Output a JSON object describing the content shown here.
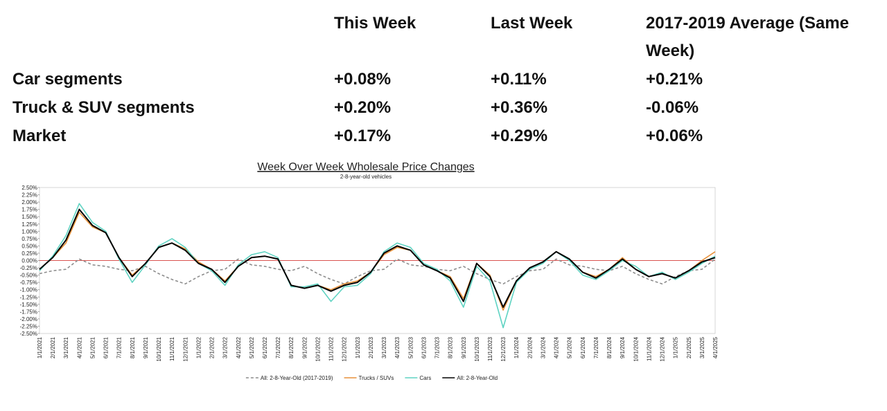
{
  "table": {
    "columns": [
      "This Week",
      "Last Week",
      "2017-2019 Average (Same Week)"
    ],
    "rows": [
      {
        "label": "Car segments",
        "values": [
          "+0.08%",
          "+0.11%",
          "+0.21%"
        ]
      },
      {
        "label": "Truck & SUV segments",
        "values": [
          "+0.20%",
          "+0.36%",
          "-0.06%"
        ]
      },
      {
        "label": "Market",
        "values": [
          "+0.17%",
          "+0.29%",
          "+0.06%"
        ]
      }
    ]
  },
  "chart_data": {
    "type": "line",
    "title": "Week Over Week Wholesale Price Changes",
    "subtitle": "2-8-year-old vehicles",
    "categories": [
      "1/1/2021",
      "2/1/2021",
      "3/1/2021",
      "4/1/2021",
      "5/1/2021",
      "6/1/2021",
      "7/1/2021",
      "8/1/2021",
      "9/1/2021",
      "10/1/2021",
      "11/1/2021",
      "12/1/2021",
      "1/1/2022",
      "2/1/2022",
      "3/1/2022",
      "4/1/2022",
      "5/1/2022",
      "6/1/2022",
      "7/1/2022",
      "8/1/2022",
      "9/1/2022",
      "10/1/2022",
      "11/1/2022",
      "12/1/2022",
      "1/1/2023",
      "2/1/2023",
      "3/1/2023",
      "4/1/2023",
      "5/1/2023",
      "6/1/2023",
      "7/1/2023",
      "8/1/2023",
      "9/1/2023",
      "10/1/2023",
      "11/1/2023",
      "12/1/2023",
      "1/1/2024",
      "2/1/2024",
      "3/1/2024",
      "4/1/2024",
      "5/1/2024",
      "6/1/2024",
      "7/1/2024",
      "8/1/2024",
      "9/1/2024",
      "10/1/2024",
      "11/1/2024",
      "12/1/2024",
      "1/1/2025",
      "2/1/2025",
      "3/1/2025",
      "4/1/2025"
    ],
    "ylim": [
      -2.5,
      2.5
    ],
    "yticks": [
      {
        "value": 2.5,
        "label": "2.50%"
      },
      {
        "value": 2.25,
        "label": "2.25%"
      },
      {
        "value": 2,
        "label": "2.00%"
      },
      {
        "value": 1.75,
        "label": "1.75%"
      },
      {
        "value": 1.5,
        "label": "1.50%"
      },
      {
        "value": 1.25,
        "label": "1.25%"
      },
      {
        "value": 1,
        "label": "1.00%"
      },
      {
        "value": 0.75,
        "label": "0.75%"
      },
      {
        "value": 0.5,
        "label": "0.50%"
      },
      {
        "value": 0.25,
        "label": "0.25%"
      },
      {
        "value": 0,
        "label": "0.00%"
      },
      {
        "value": -0.25,
        "label": "-0.25%"
      },
      {
        "value": -0.5,
        "label": "-0.50%"
      },
      {
        "value": -0.75,
        "label": "-0.75%"
      },
      {
        "value": -1,
        "label": "-1.00%"
      },
      {
        "value": -1.25,
        "label": "-1.25%"
      },
      {
        "value": -1.5,
        "label": "-1.50%"
      },
      {
        "value": -1.75,
        "label": "-1.75%"
      },
      {
        "value": -2,
        "label": "-2.00%"
      },
      {
        "value": -2.25,
        "label": "-2.25%"
      },
      {
        "value": -2.5,
        "label": "-2.50%"
      }
    ],
    "series": [
      {
        "name": "All: 2-8-Year-Old (2017-2019)",
        "color": "#8c8c8c",
        "dashed": true,
        "values": [
          -0.45,
          -0.35,
          -0.3,
          0.05,
          -0.15,
          -0.2,
          -0.3,
          -0.35,
          -0.2,
          -0.45,
          -0.65,
          -0.8,
          -0.55,
          -0.35,
          -0.3,
          0.05,
          -0.15,
          -0.2,
          -0.3,
          -0.35,
          -0.2,
          -0.45,
          -0.65,
          -0.8,
          -0.55,
          -0.35,
          -0.3,
          0.05,
          -0.15,
          -0.2,
          -0.3,
          -0.35,
          -0.2,
          -0.45,
          -0.65,
          -0.8,
          -0.55,
          -0.35,
          -0.3,
          0.05,
          -0.15,
          -0.2,
          -0.3,
          -0.35,
          -0.2,
          -0.45,
          -0.65,
          -0.8,
          -0.55,
          -0.35,
          -0.3,
          0.05
        ]
      },
      {
        "name": "Trucks / SUVs",
        "color": "#e8913a",
        "dashed": false,
        "values": [
          -0.3,
          0.1,
          0.6,
          1.65,
          1.15,
          0.95,
          0.1,
          -0.5,
          -0.1,
          0.45,
          0.6,
          0.4,
          -0.05,
          -0.3,
          -0.7,
          -0.2,
          0.1,
          0.15,
          0.05,
          -0.85,
          -0.95,
          -0.85,
          -1.0,
          -0.8,
          -0.7,
          -0.4,
          0.2,
          0.45,
          0.35,
          -0.15,
          -0.35,
          -0.55,
          -1.3,
          -0.1,
          -0.5,
          -1.7,
          -0.7,
          -0.25,
          -0.05,
          0.3,
          0.05,
          -0.4,
          -0.55,
          -0.3,
          0.1,
          -0.3,
          -0.55,
          -0.45,
          -0.6,
          -0.35,
          0.0,
          0.3
        ]
      },
      {
        "name": "Cars",
        "color": "#5fd3c2",
        "dashed": false,
        "values": [
          -0.35,
          0.15,
          0.85,
          1.95,
          1.3,
          1.0,
          0.05,
          -0.75,
          -0.15,
          0.5,
          0.75,
          0.45,
          -0.1,
          -0.35,
          -0.85,
          -0.15,
          0.2,
          0.3,
          0.1,
          -0.9,
          -0.9,
          -0.8,
          -1.4,
          -0.9,
          -0.85,
          -0.45,
          0.3,
          0.6,
          0.45,
          -0.1,
          -0.3,
          -0.7,
          -1.6,
          -0.2,
          -0.7,
          -2.3,
          -0.75,
          -0.3,
          -0.1,
          0.3,
          0.0,
          -0.5,
          -0.65,
          -0.35,
          0.0,
          -0.2,
          -0.55,
          -0.4,
          -0.65,
          -0.4,
          -0.1,
          0.15
        ]
      },
      {
        "name": "All: 2-8-Year-Old",
        "color": "#000000",
        "dashed": false,
        "values": [
          -0.3,
          0.1,
          0.7,
          1.75,
          1.2,
          0.95,
          0.1,
          -0.55,
          -0.1,
          0.45,
          0.6,
          0.35,
          -0.1,
          -0.3,
          -0.75,
          -0.2,
          0.1,
          0.15,
          0.05,
          -0.85,
          -0.95,
          -0.85,
          -1.05,
          -0.85,
          -0.75,
          -0.4,
          0.25,
          0.5,
          0.35,
          -0.15,
          -0.35,
          -0.6,
          -1.4,
          -0.1,
          -0.55,
          -1.6,
          -0.7,
          -0.25,
          -0.05,
          0.3,
          0.05,
          -0.4,
          -0.6,
          -0.3,
          0.05,
          -0.3,
          -0.55,
          -0.45,
          -0.6,
          -0.35,
          -0.05,
          0.1
        ]
      }
    ],
    "reference_color": "#d9534f"
  }
}
